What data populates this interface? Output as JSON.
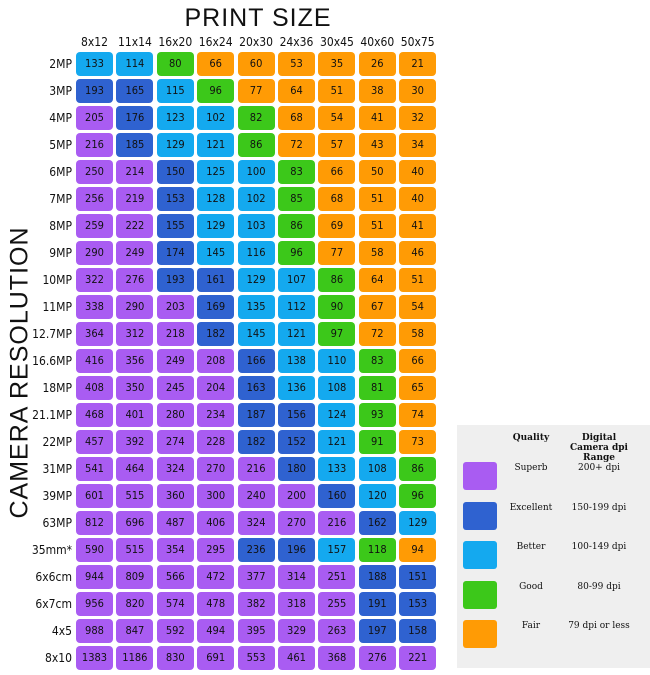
{
  "title": "PRINT SIZE",
  "side_label": "CAMERA RESOLUTION",
  "columns": [
    "8x12",
    "11x14",
    "16x20",
    "16x24",
    "20x30",
    "24x36",
    "30x45",
    "40x60",
    "50x75"
  ],
  "rows": [
    {
      "label": "2MP",
      "values": [
        133,
        114,
        80,
        66,
        60,
        53,
        35,
        26,
        21
      ],
      "colors": [
        "#14a9ef",
        "#14a9ef",
        "#3cc81a",
        "#ff9b05",
        "#ff9b05",
        "#ff9b05",
        "#ff9b05",
        "#ff9b05",
        "#ff9b05"
      ]
    },
    {
      "label": "3MP",
      "values": [
        193,
        165,
        115,
        96,
        77,
        64,
        51,
        38,
        30
      ],
      "colors": [
        "#2f62d0",
        "#2f62d0",
        "#14a9ef",
        "#3cc81a",
        "#ff9b05",
        "#ff9b05",
        "#ff9b05",
        "#ff9b05",
        "#ff9b05"
      ]
    },
    {
      "label": "4MP",
      "values": [
        205,
        176,
        123,
        102,
        82,
        68,
        54,
        41,
        32
      ],
      "colors": [
        "#a95cf2",
        "#2f62d0",
        "#14a9ef",
        "#14a9ef",
        "#3cc81a",
        "#ff9b05",
        "#ff9b05",
        "#ff9b05",
        "#ff9b05"
      ]
    },
    {
      "label": "5MP",
      "values": [
        216,
        185,
        129,
        121,
        86,
        72,
        57,
        43,
        34
      ],
      "colors": [
        "#a95cf2",
        "#2f62d0",
        "#14a9ef",
        "#14a9ef",
        "#3cc81a",
        "#ff9b05",
        "#ff9b05",
        "#ff9b05",
        "#ff9b05"
      ]
    },
    {
      "label": "6MP",
      "values": [
        250,
        214,
        150,
        125,
        100,
        83,
        66,
        50,
        40
      ],
      "colors": [
        "#a95cf2",
        "#a95cf2",
        "#2f62d0",
        "#14a9ef",
        "#14a9ef",
        "#3cc81a",
        "#ff9b05",
        "#ff9b05",
        "#ff9b05"
      ]
    },
    {
      "label": "7MP",
      "values": [
        256,
        219,
        153,
        128,
        102,
        85,
        68,
        51,
        40
      ],
      "colors": [
        "#a95cf2",
        "#a95cf2",
        "#2f62d0",
        "#14a9ef",
        "#14a9ef",
        "#3cc81a",
        "#ff9b05",
        "#ff9b05",
        "#ff9b05"
      ]
    },
    {
      "label": "8MP",
      "values": [
        259,
        222,
        155,
        129,
        103,
        86,
        69,
        51,
        41
      ],
      "colors": [
        "#a95cf2",
        "#a95cf2",
        "#2f62d0",
        "#14a9ef",
        "#14a9ef",
        "#3cc81a",
        "#ff9b05",
        "#ff9b05",
        "#ff9b05"
      ]
    },
    {
      "label": "9MP",
      "values": [
        290,
        249,
        174,
        145,
        116,
        96,
        77,
        58,
        46
      ],
      "colors": [
        "#a95cf2",
        "#a95cf2",
        "#2f62d0",
        "#14a9ef",
        "#14a9ef",
        "#3cc81a",
        "#ff9b05",
        "#ff9b05",
        "#ff9b05"
      ]
    },
    {
      "label": "10MP",
      "values": [
        322,
        276,
        193,
        161,
        129,
        107,
        86,
        64,
        51
      ],
      "colors": [
        "#a95cf2",
        "#a95cf2",
        "#2f62d0",
        "#2f62d0",
        "#14a9ef",
        "#14a9ef",
        "#3cc81a",
        "#ff9b05",
        "#ff9b05"
      ]
    },
    {
      "label": "11MP",
      "values": [
        338,
        290,
        203,
        169,
        135,
        112,
        90,
        67,
        54
      ],
      "colors": [
        "#a95cf2",
        "#a95cf2",
        "#a95cf2",
        "#2f62d0",
        "#14a9ef",
        "#14a9ef",
        "#3cc81a",
        "#ff9b05",
        "#ff9b05"
      ]
    },
    {
      "label": "12.7MP",
      "values": [
        364,
        312,
        218,
        182,
        145,
        121,
        97,
        72,
        58
      ],
      "colors": [
        "#a95cf2",
        "#a95cf2",
        "#a95cf2",
        "#2f62d0",
        "#14a9ef",
        "#14a9ef",
        "#3cc81a",
        "#ff9b05",
        "#ff9b05"
      ]
    },
    {
      "label": "16.6MP",
      "values": [
        416,
        356,
        249,
        208,
        166,
        138,
        110,
        83,
        66
      ],
      "colors": [
        "#a95cf2",
        "#a95cf2",
        "#a95cf2",
        "#a95cf2",
        "#2f62d0",
        "#14a9ef",
        "#14a9ef",
        "#3cc81a",
        "#ff9b05"
      ]
    },
    {
      "label": "18MP",
      "values": [
        408,
        350,
        245,
        204,
        163,
        136,
        108,
        81,
        65
      ],
      "colors": [
        "#a95cf2",
        "#a95cf2",
        "#a95cf2",
        "#a95cf2",
        "#2f62d0",
        "#14a9ef",
        "#14a9ef",
        "#3cc81a",
        "#ff9b05"
      ]
    },
    {
      "label": "21.1MP",
      "values": [
        468,
        401,
        280,
        234,
        187,
        156,
        124,
        93,
        74
      ],
      "colors": [
        "#a95cf2",
        "#a95cf2",
        "#a95cf2",
        "#a95cf2",
        "#2f62d0",
        "#2f62d0",
        "#14a9ef",
        "#3cc81a",
        "#ff9b05"
      ]
    },
    {
      "label": "22MP",
      "values": [
        457,
        392,
        274,
        228,
        182,
        152,
        121,
        91,
        73
      ],
      "colors": [
        "#a95cf2",
        "#a95cf2",
        "#a95cf2",
        "#a95cf2",
        "#2f62d0",
        "#2f62d0",
        "#14a9ef",
        "#3cc81a",
        "#ff9b05"
      ]
    },
    {
      "label": "31MP",
      "values": [
        541,
        464,
        324,
        270,
        216,
        180,
        133,
        108,
        86
      ],
      "colors": [
        "#a95cf2",
        "#a95cf2",
        "#a95cf2",
        "#a95cf2",
        "#a95cf2",
        "#2f62d0",
        "#14a9ef",
        "#14a9ef",
        "#3cc81a"
      ]
    },
    {
      "label": "39MP",
      "values": [
        601,
        515,
        360,
        300,
        240,
        200,
        160,
        120,
        96
      ],
      "colors": [
        "#a95cf2",
        "#a95cf2",
        "#a95cf2",
        "#a95cf2",
        "#a95cf2",
        "#a95cf2",
        "#2f62d0",
        "#14a9ef",
        "#3cc81a"
      ]
    },
    {
      "label": "63MP",
      "values": [
        812,
        696,
        487,
        406,
        324,
        270,
        216,
        162,
        129
      ],
      "colors": [
        "#a95cf2",
        "#a95cf2",
        "#a95cf2",
        "#a95cf2",
        "#a95cf2",
        "#a95cf2",
        "#a95cf2",
        "#2f62d0",
        "#14a9ef"
      ]
    },
    {
      "label": "35mm*",
      "values": [
        590,
        515,
        354,
        295,
        236,
        196,
        157,
        118,
        94
      ],
      "colors": [
        "#a95cf2",
        "#a95cf2",
        "#a95cf2",
        "#a95cf2",
        "#2f62d0",
        "#2f62d0",
        "#14a9ef",
        "#3cc81a",
        "#ff9b05"
      ]
    },
    {
      "label": "6x6cm",
      "values": [
        944,
        809,
        566,
        472,
        377,
        314,
        251,
        188,
        151
      ],
      "colors": [
        "#a95cf2",
        "#a95cf2",
        "#a95cf2",
        "#a95cf2",
        "#a95cf2",
        "#a95cf2",
        "#a95cf2",
        "#2f62d0",
        "#2f62d0"
      ]
    },
    {
      "label": "6x7cm",
      "values": [
        956,
        820,
        574,
        478,
        382,
        318,
        255,
        191,
        153
      ],
      "colors": [
        "#a95cf2",
        "#a95cf2",
        "#a95cf2",
        "#a95cf2",
        "#a95cf2",
        "#a95cf2",
        "#a95cf2",
        "#2f62d0",
        "#2f62d0"
      ]
    },
    {
      "label": "4x5",
      "values": [
        988,
        847,
        592,
        494,
        395,
        329,
        263,
        197,
        158
      ],
      "colors": [
        "#a95cf2",
        "#a95cf2",
        "#a95cf2",
        "#a95cf2",
        "#a95cf2",
        "#a95cf2",
        "#a95cf2",
        "#2f62d0",
        "#2f62d0"
      ]
    },
    {
      "label": "8x10",
      "values": [
        1383,
        1186,
        830,
        691,
        553,
        461,
        368,
        276,
        221
      ],
      "colors": [
        "#a95cf2",
        "#a95cf2",
        "#a95cf2",
        "#a95cf2",
        "#a95cf2",
        "#a95cf2",
        "#a95cf2",
        "#a95cf2",
        "#a95cf2"
      ]
    }
  ],
  "legend": {
    "headers": [
      "Quality",
      "Digital Camera dpi Range"
    ],
    "items": [
      {
        "label": "Superb",
        "range": "200+ dpi",
        "color": "#a95cf2"
      },
      {
        "label": "Excellent",
        "range": "150-199 dpi",
        "color": "#2f62d0"
      },
      {
        "label": "Better",
        "range": "100-149 dpi",
        "color": "#14a9ef"
      },
      {
        "label": "Good",
        "range": "80-99 dpi",
        "color": "#3cc81a"
      },
      {
        "label": "Fair",
        "range": "79 dpi or less",
        "color": "#ff9b05"
      }
    ]
  }
}
